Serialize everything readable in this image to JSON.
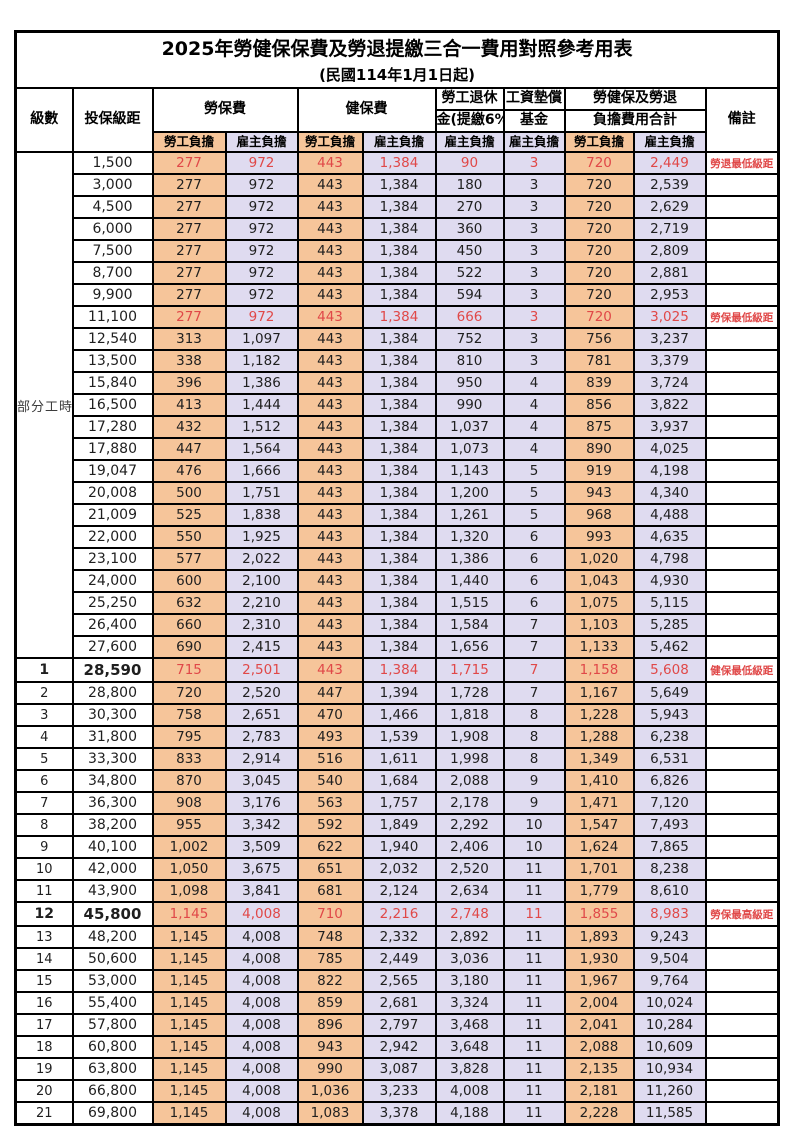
{
  "title": "2025年勞健保保費及勞退提繳三合一費用對照參考用表",
  "subtitle": "(民國114年1月1日起)",
  "header": {
    "level": "級數",
    "salary": "投保級距",
    "labor_insurance": "勞保費",
    "health_insurance": "健保費",
    "pension_line1": "勞工退休",
    "pension_line2": "金(提繳6%)",
    "wage_fund_line1": "工資墊償",
    "wage_fund_line2": "基金",
    "total_line1": "勞健保及勞退",
    "total_line2": "負擔費用合計",
    "remark": "備註",
    "employee_burden": "勞工負擔",
    "employer_burden": "雇主負擔"
  },
  "part_time_label": "部分工時",
  "part_time_span": 23,
  "colors": {
    "employee_bg": "#F6C59A",
    "employer_bg": "#DFDBF0",
    "highlight_red": "#E04848",
    "border": "#000000"
  },
  "rows": [
    {
      "pt": 1,
      "sal": "1,500",
      "v": [
        "277",
        "972",
        "443",
        "1,384",
        "90",
        "3",
        "720",
        "2,449"
      ],
      "rm": "勞退最低級距",
      "red": 1
    },
    {
      "sal": "3,000",
      "v": [
        "277",
        "972",
        "443",
        "1,384",
        "180",
        "3",
        "720",
        "2,539"
      ]
    },
    {
      "sal": "4,500",
      "v": [
        "277",
        "972",
        "443",
        "1,384",
        "270",
        "3",
        "720",
        "2,629"
      ]
    },
    {
      "sal": "6,000",
      "v": [
        "277",
        "972",
        "443",
        "1,384",
        "360",
        "3",
        "720",
        "2,719"
      ]
    },
    {
      "sal": "7,500",
      "v": [
        "277",
        "972",
        "443",
        "1,384",
        "450",
        "3",
        "720",
        "2,809"
      ]
    },
    {
      "sal": "8,700",
      "v": [
        "277",
        "972",
        "443",
        "1,384",
        "522",
        "3",
        "720",
        "2,881"
      ]
    },
    {
      "sal": "9,900",
      "v": [
        "277",
        "972",
        "443",
        "1,384",
        "594",
        "3",
        "720",
        "2,953"
      ]
    },
    {
      "sal": "11,100",
      "v": [
        "277",
        "972",
        "443",
        "1,384",
        "666",
        "3",
        "720",
        "3,025"
      ],
      "rm": "勞保最低級距",
      "red": 1
    },
    {
      "sal": "12,540",
      "v": [
        "313",
        "1,097",
        "443",
        "1,384",
        "752",
        "3",
        "756",
        "3,237"
      ]
    },
    {
      "sal": "13,500",
      "v": [
        "338",
        "1,182",
        "443",
        "1,384",
        "810",
        "3",
        "781",
        "3,379"
      ]
    },
    {
      "sal": "15,840",
      "v": [
        "396",
        "1,386",
        "443",
        "1,384",
        "950",
        "4",
        "839",
        "3,724"
      ]
    },
    {
      "sal": "16,500",
      "v": [
        "413",
        "1,444",
        "443",
        "1,384",
        "990",
        "4",
        "856",
        "3,822"
      ]
    },
    {
      "sal": "17,280",
      "v": [
        "432",
        "1,512",
        "443",
        "1,384",
        "1,037",
        "4",
        "875",
        "3,937"
      ]
    },
    {
      "sal": "17,880",
      "v": [
        "447",
        "1,564",
        "443",
        "1,384",
        "1,073",
        "4",
        "890",
        "4,025"
      ]
    },
    {
      "sal": "19,047",
      "v": [
        "476",
        "1,666",
        "443",
        "1,384",
        "1,143",
        "5",
        "919",
        "4,198"
      ]
    },
    {
      "sal": "20,008",
      "v": [
        "500",
        "1,751",
        "443",
        "1,384",
        "1,200",
        "5",
        "943",
        "4,340"
      ]
    },
    {
      "sal": "21,009",
      "v": [
        "525",
        "1,838",
        "443",
        "1,384",
        "1,261",
        "5",
        "968",
        "4,488"
      ]
    },
    {
      "sal": "22,000",
      "v": [
        "550",
        "1,925",
        "443",
        "1,384",
        "1,320",
        "6",
        "993",
        "4,635"
      ]
    },
    {
      "sal": "23,100",
      "v": [
        "577",
        "2,022",
        "443",
        "1,384",
        "1,386",
        "6",
        "1,020",
        "4,798"
      ]
    },
    {
      "sal": "24,000",
      "v": [
        "600",
        "2,100",
        "443",
        "1,384",
        "1,440",
        "6",
        "1,043",
        "4,930"
      ]
    },
    {
      "sal": "25,250",
      "v": [
        "632",
        "2,210",
        "443",
        "1,384",
        "1,515",
        "6",
        "1,075",
        "5,115"
      ]
    },
    {
      "sal": "26,400",
      "v": [
        "660",
        "2,310",
        "443",
        "1,384",
        "1,584",
        "7",
        "1,103",
        "5,285"
      ]
    },
    {
      "sal": "27,600",
      "v": [
        "690",
        "2,415",
        "443",
        "1,384",
        "1,656",
        "7",
        "1,133",
        "5,462"
      ]
    },
    {
      "lv": "1",
      "sal": "28,590",
      "v": [
        "715",
        "2,501",
        "443",
        "1,384",
        "1,715",
        "7",
        "1,158",
        "5,608"
      ],
      "rm": "健保最低級距",
      "red": 1,
      "emph": 1
    },
    {
      "lv": "2",
      "sal": "28,800",
      "v": [
        "720",
        "2,520",
        "447",
        "1,394",
        "1,728",
        "7",
        "1,167",
        "5,649"
      ]
    },
    {
      "lv": "3",
      "sal": "30,300",
      "v": [
        "758",
        "2,651",
        "470",
        "1,466",
        "1,818",
        "8",
        "1,228",
        "5,943"
      ]
    },
    {
      "lv": "4",
      "sal": "31,800",
      "v": [
        "795",
        "2,783",
        "493",
        "1,539",
        "1,908",
        "8",
        "1,288",
        "6,238"
      ]
    },
    {
      "lv": "5",
      "sal": "33,300",
      "v": [
        "833",
        "2,914",
        "516",
        "1,611",
        "1,998",
        "8",
        "1,349",
        "6,531"
      ]
    },
    {
      "lv": "6",
      "sal": "34,800",
      "v": [
        "870",
        "3,045",
        "540",
        "1,684",
        "2,088",
        "9",
        "1,410",
        "6,826"
      ]
    },
    {
      "lv": "7",
      "sal": "36,300",
      "v": [
        "908",
        "3,176",
        "563",
        "1,757",
        "2,178",
        "9",
        "1,471",
        "7,120"
      ]
    },
    {
      "lv": "8",
      "sal": "38,200",
      "v": [
        "955",
        "3,342",
        "592",
        "1,849",
        "2,292",
        "10",
        "1,547",
        "7,493"
      ]
    },
    {
      "lv": "9",
      "sal": "40,100",
      "v": [
        "1,002",
        "3,509",
        "622",
        "1,940",
        "2,406",
        "10",
        "1,624",
        "7,865"
      ]
    },
    {
      "lv": "10",
      "sal": "42,000",
      "v": [
        "1,050",
        "3,675",
        "651",
        "2,032",
        "2,520",
        "11",
        "1,701",
        "8,238"
      ]
    },
    {
      "lv": "11",
      "sal": "43,900",
      "v": [
        "1,098",
        "3,841",
        "681",
        "2,124",
        "2,634",
        "11",
        "1,779",
        "8,610"
      ]
    },
    {
      "lv": "12",
      "sal": "45,800",
      "v": [
        "1,145",
        "4,008",
        "710",
        "2,216",
        "2,748",
        "11",
        "1,855",
        "8,983"
      ],
      "rm": "勞保最高級距",
      "red": 1,
      "emph": 1
    },
    {
      "lv": "13",
      "sal": "48,200",
      "v": [
        "1,145",
        "4,008",
        "748",
        "2,332",
        "2,892",
        "11",
        "1,893",
        "9,243"
      ]
    },
    {
      "lv": "14",
      "sal": "50,600",
      "v": [
        "1,145",
        "4,008",
        "785",
        "2,449",
        "3,036",
        "11",
        "1,930",
        "9,504"
      ]
    },
    {
      "lv": "15",
      "sal": "53,000",
      "v": [
        "1,145",
        "4,008",
        "822",
        "2,565",
        "3,180",
        "11",
        "1,967",
        "9,764"
      ]
    },
    {
      "lv": "16",
      "sal": "55,400",
      "v": [
        "1,145",
        "4,008",
        "859",
        "2,681",
        "3,324",
        "11",
        "2,004",
        "10,024"
      ]
    },
    {
      "lv": "17",
      "sal": "57,800",
      "v": [
        "1,145",
        "4,008",
        "896",
        "2,797",
        "3,468",
        "11",
        "2,041",
        "10,284"
      ]
    },
    {
      "lv": "18",
      "sal": "60,800",
      "v": [
        "1,145",
        "4,008",
        "943",
        "2,942",
        "3,648",
        "11",
        "2,088",
        "10,609"
      ]
    },
    {
      "lv": "19",
      "sal": "63,800",
      "v": [
        "1,145",
        "4,008",
        "990",
        "3,087",
        "3,828",
        "11",
        "2,135",
        "10,934"
      ]
    },
    {
      "lv": "20",
      "sal": "66,800",
      "v": [
        "1,145",
        "4,008",
        "1,036",
        "3,233",
        "4,008",
        "11",
        "2,181",
        "11,260"
      ]
    },
    {
      "lv": "21",
      "sal": "69,800",
      "v": [
        "1,145",
        "4,008",
        "1,083",
        "3,378",
        "4,188",
        "11",
        "2,228",
        "11,585"
      ]
    }
  ]
}
